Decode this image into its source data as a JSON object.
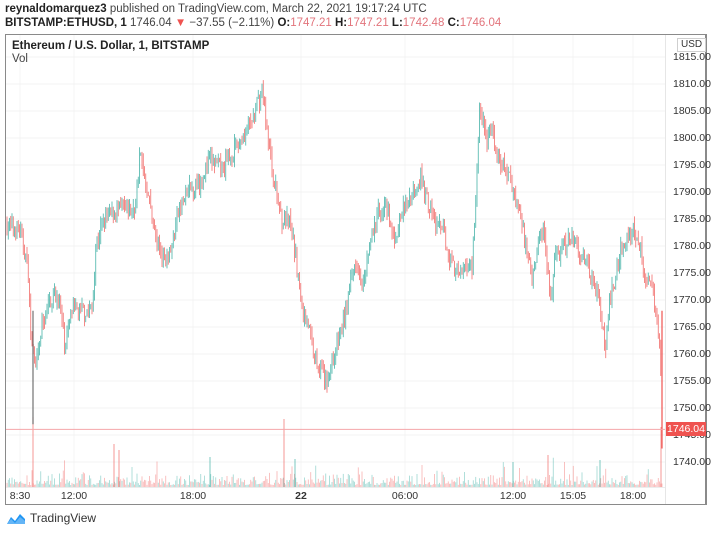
{
  "header": {
    "author": "reynaldomarquez3",
    "published_text": "published on TradingView.com, March 22, 2021 19:17:24 UTC",
    "symbol": "BITSTAMP:ETHUSD, 1",
    "last": "1746.04",
    "change_arrow": "▼",
    "change": "−37.55 (−2.11%)",
    "o_label": "O:",
    "o_value": "1747.21",
    "h_label": "H:",
    "h_value": "1747.21",
    "l_label": "L:",
    "l_value": "1742.48",
    "c_label": "C:",
    "c_value": "1746.04"
  },
  "legend": {
    "title": "Ethereum / U.S. Dollar, 1, BITSTAMP",
    "volume_label": "Vol"
  },
  "price_axis": {
    "currency": "USD",
    "current_price_badge": "1746.04"
  },
  "footer": {
    "brand": "TradingView"
  },
  "colors": {
    "up": "#26a69a",
    "down": "#ef5350",
    "price_line": "#f4a6aa",
    "badge": "#ef5350",
    "logo": "#2196f3"
  },
  "chart_data": {
    "type": "candlestick",
    "title": "Ethereum / U.S. Dollar, 1, BITSTAMP",
    "symbol": "BITSTAMP:ETHUSD",
    "interval": "1 minute",
    "xlabel": "",
    "ylabel": "USD",
    "ylim": [
      1736,
      1819
    ],
    "y_ticks": [
      "1815.00",
      "1810.00",
      "1805.00",
      "1800.00",
      "1795.00",
      "1790.00",
      "1785.00",
      "1780.00",
      "1775.00",
      "1770.00",
      "1765.00",
      "1760.00",
      "1755.00",
      "1750.00",
      "1745.00",
      "1740.00"
    ],
    "x_ticks": [
      {
        "label": "8:30",
        "bold": false
      },
      {
        "label": "12:00",
        "bold": false
      },
      {
        "label": "18:00",
        "bold": false
      },
      {
        "label": "22",
        "bold": true
      },
      {
        "label": "06:00",
        "bold": false
      },
      {
        "label": "12:00",
        "bold": false
      },
      {
        "label": "15:05",
        "bold": false
      },
      {
        "label": "18:00",
        "bold": false
      }
    ],
    "grid": true,
    "legend_position": "top-left",
    "current_price": 1746.04,
    "ohlc_last": {
      "open": 1747.21,
      "high": 1747.21,
      "low": 1742.48,
      "close": 1746.04
    },
    "change": -37.55,
    "change_pct": -2.11,
    "approx_close_path": {
      "x": [
        "8:30",
        "9:30",
        "10:00",
        "10:30",
        "11:00",
        "12:00",
        "13:00",
        "14:00",
        "15:00",
        "16:00",
        "17:00",
        "18:00",
        "19:00",
        "20:00",
        "21:00",
        "22:00",
        "23:00",
        "00:00",
        "01:00",
        "02:00",
        "03:00",
        "04:00",
        "05:00",
        "06:00",
        "07:00",
        "08:00",
        "09:00",
        "10:00",
        "11:00",
        "12:00",
        "13:00",
        "14:00",
        "15:00",
        "15:05",
        "16:00",
        "17:00",
        "18:00",
        "18:30",
        "19:17"
      ],
      "values": [
        1784,
        1780,
        1762,
        1770,
        1766,
        1768,
        1782,
        1786,
        1788,
        1797,
        1780,
        1786,
        1794,
        1798,
        1808,
        1795,
        1784,
        1760,
        1756,
        1768,
        1778,
        1786,
        1790,
        1780,
        1792,
        1776,
        1774,
        1806,
        1798,
        1794,
        1782,
        1778,
        1780,
        1770,
        1778,
        1782,
        1760,
        1781,
        1746
      ]
    },
    "volume": {
      "label": "Vol",
      "notable_spikes": [
        "~8:30 (large)",
        "~18:00 Mar 21",
        "~22:00 Mar 21 (large)",
        "~18:00 Mar 22"
      ]
    }
  }
}
